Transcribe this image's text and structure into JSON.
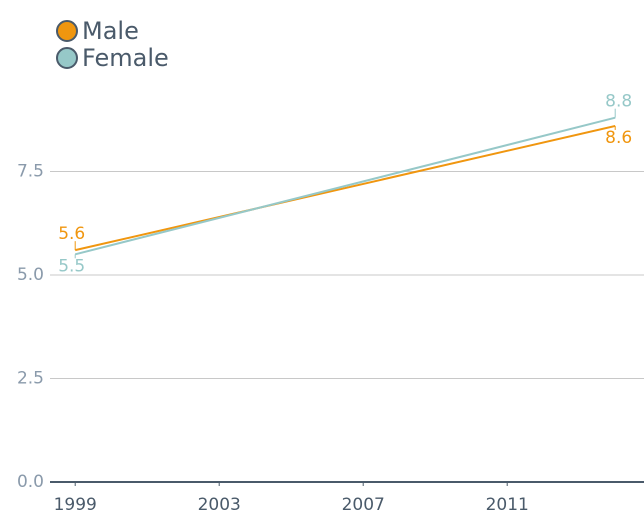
{
  "chart_data": {
    "type": "line",
    "x": [
      1999,
      2014
    ],
    "series": [
      {
        "name": "Male",
        "color": "#f0960f",
        "values": [
          5.6,
          8.6
        ]
      },
      {
        "name": "Female",
        "color": "#96c8c8",
        "values": [
          5.5,
          8.8
        ]
      }
    ],
    "xlim": [
      1998.3,
      2014.8
    ],
    "xticks": [
      1999,
      2003,
      2007,
      2011
    ],
    "ylim": [
      0,
      9
    ],
    "yticks": [
      {
        "value": 0,
        "label": "0.0"
      },
      2.5,
      {
        "value": 5,
        "label": "5.0"
      },
      7.5
    ],
    "grid": true,
    "legend": "top-left"
  }
}
